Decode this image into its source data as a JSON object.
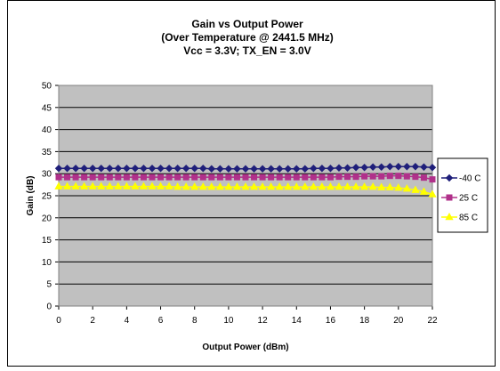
{
  "chart_data": {
    "type": "line",
    "title_lines": [
      "Gain vs Output Power",
      "(Over Temperature @ 2441.5 MHz)",
      "Vcc = 3.3V; TX_EN = 3.0V"
    ],
    "xlabel": "Output Power (dBm)",
    "ylabel": "Gain (dB)",
    "xlim": [
      0,
      22
    ],
    "ylim": [
      0,
      50
    ],
    "xticks": [
      "0",
      "2",
      "4",
      "6",
      "8",
      "10",
      "12",
      "14",
      "16",
      "18",
      "20",
      "22"
    ],
    "yticks": [
      "0",
      "5",
      "10",
      "15",
      "20",
      "25",
      "30",
      "35",
      "40",
      "45",
      "50"
    ],
    "grid": true,
    "plot_background": "#c0c0c0",
    "legend_position": "right",
    "series": [
      {
        "name": "-40 C",
        "color": "#1f1f7a",
        "marker": "diamond",
        "x": [
          0,
          0.5,
          1,
          1.5,
          2,
          2.5,
          3,
          3.5,
          4,
          4.5,
          5,
          5.5,
          6,
          6.5,
          7,
          7.5,
          8,
          8.5,
          9,
          9.5,
          10,
          10.5,
          11,
          11.5,
          12,
          12.5,
          13,
          13.5,
          14,
          14.5,
          15,
          15.5,
          16,
          16.5,
          17,
          17.5,
          18,
          18.5,
          19,
          19.5,
          20,
          20.5,
          21,
          21.5,
          22
        ],
        "y": [
          31.2,
          31.2,
          31.2,
          31.2,
          31.2,
          31.2,
          31.2,
          31.2,
          31.2,
          31.2,
          31.2,
          31.2,
          31.2,
          31.2,
          31.2,
          31.2,
          31.2,
          31.2,
          31.1,
          31.1,
          31.1,
          31.1,
          31.1,
          31.1,
          31.1,
          31.1,
          31.1,
          31.1,
          31.1,
          31.1,
          31.2,
          31.2,
          31.2,
          31.3,
          31.3,
          31.4,
          31.4,
          31.5,
          31.5,
          31.6,
          31.6,
          31.6,
          31.6,
          31.5,
          31.4
        ]
      },
      {
        "name": "25 C",
        "color": "#b0308a",
        "marker": "square",
        "x": [
          0,
          0.5,
          1,
          1.5,
          2,
          2.5,
          3,
          3.5,
          4,
          4.5,
          5,
          5.5,
          6,
          6.5,
          7,
          7.5,
          8,
          8.5,
          9,
          9.5,
          10,
          10.5,
          11,
          11.5,
          12,
          12.5,
          13,
          13.5,
          14,
          14.5,
          15,
          15.5,
          16,
          16.5,
          17,
          17.5,
          18,
          18.5,
          19,
          19.5,
          20,
          20.5,
          21,
          21.5,
          22
        ],
        "y": [
          29.2,
          29.2,
          29.2,
          29.2,
          29.2,
          29.2,
          29.2,
          29.2,
          29.2,
          29.2,
          29.2,
          29.2,
          29.2,
          29.2,
          29.2,
          29.2,
          29.2,
          29.2,
          29.2,
          29.2,
          29.2,
          29.2,
          29.2,
          29.2,
          29.2,
          29.2,
          29.2,
          29.2,
          29.2,
          29.2,
          29.2,
          29.2,
          29.2,
          29.3,
          29.3,
          29.3,
          29.4,
          29.4,
          29.4,
          29.5,
          29.5,
          29.4,
          29.3,
          29.1,
          28.7
        ]
      },
      {
        "name": "85 C",
        "color": "#ffff00",
        "marker": "triangle",
        "x": [
          0,
          0.5,
          1,
          1.5,
          2,
          2.5,
          3,
          3.5,
          4,
          4.5,
          5,
          5.5,
          6,
          6.5,
          7,
          7.5,
          8,
          8.5,
          9,
          9.5,
          10,
          10.5,
          11,
          11.5,
          12,
          12.5,
          13,
          13.5,
          14,
          14.5,
          15,
          15.5,
          16,
          16.5,
          17,
          17.5,
          18,
          18.5,
          19,
          19.5,
          20,
          20.5,
          21,
          21.5,
          22
        ],
        "y": [
          27.1,
          27.1,
          27.1,
          27.1,
          27.1,
          27.1,
          27.1,
          27.1,
          27.1,
          27.1,
          27.1,
          27.1,
          27.1,
          27.1,
          27.0,
          27.0,
          27.0,
          27.0,
          27.0,
          27.0,
          27.0,
          27.0,
          27.0,
          27.0,
          27.0,
          27.0,
          27.0,
          27.0,
          27.0,
          27.0,
          27.0,
          27.0,
          27.0,
          27.0,
          27.0,
          27.0,
          27.0,
          27.0,
          26.9,
          26.9,
          26.8,
          26.6,
          26.3,
          25.9,
          25.3
        ]
      }
    ]
  }
}
